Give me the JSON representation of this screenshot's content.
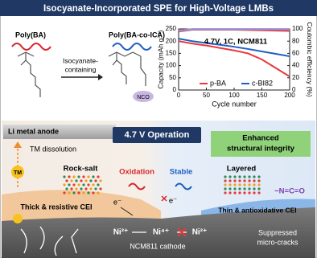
{
  "header": {
    "title": "Isocyanate-Incorporated SPE for High-Voltage LMBs"
  },
  "scheme": {
    "reactant": "Poly(BA)",
    "product": "Poly(BA-co-ICA)",
    "reagent": [
      "Isocyanate-",
      "containing"
    ],
    "group": "NCO"
  },
  "chart": {
    "type": "line",
    "annotation": "4.7V, 1C, NCM811",
    "x_label": "Cycle number",
    "y_label": "Capacity (mAh g⁻¹)",
    "y2_label": "Coulombic efficiency (%)",
    "x": [
      0,
      25,
      50,
      75,
      100,
      125,
      150,
      175,
      200
    ],
    "xlim": [
      0,
      200
    ],
    "xticks": [
      0,
      50,
      100,
      150,
      200
    ],
    "ylim": [
      0,
      250
    ],
    "yticks": [
      0,
      50,
      100,
      150,
      200,
      250
    ],
    "y2lim": [
      0,
      100
    ],
    "y2ticks": [
      0,
      20,
      40,
      60,
      80,
      100
    ],
    "series": [
      {
        "name": "p-BA",
        "color": "#e8383d",
        "values": [
          200,
          190,
          182,
          172,
          162,
          150,
          125,
          90,
          55
        ]
      },
      {
        "name": "c-BI82",
        "color": "#1f5fbf",
        "values": [
          210,
          200,
          192,
          185,
          177,
          168,
          158,
          148,
          138
        ]
      },
      {
        "color": "#e8383d",
        "axis": "y2",
        "values": [
          96,
          99,
          99,
          99,
          99,
          98.5,
          98,
          97.5,
          97
        ]
      },
      {
        "color": "#9a8fd0",
        "axis": "y2",
        "values": [
          97,
          99.5,
          99.5,
          99.5,
          99.5,
          99.5,
          99.5,
          99.5,
          99.5
        ]
      }
    ]
  },
  "diagram": {
    "banner": "4.7 V Operation",
    "anode": "Li metal anode",
    "dissolution": "TM dissolution",
    "tm": "TM",
    "integrity": [
      "Enhanced",
      "structural integrity"
    ],
    "rock_salt": "Rock-salt",
    "layered": "Layered",
    "oxidation": "Oxidation",
    "stable": "Stable",
    "electron": "e⁻",
    "blocked_electron": "e⁻",
    "cei_thick": "Thick & resistive CEI",
    "cei_thin": "Thin & antioxidative CEI",
    "isocyanate": "−N=C=O",
    "ni": [
      "Ni²⁺",
      "Ni⁴⁺",
      "Ni²⁺"
    ],
    "cathode": "NCM811 cathode",
    "cracks": [
      "Suppressed",
      "micro-cracks"
    ]
  }
}
